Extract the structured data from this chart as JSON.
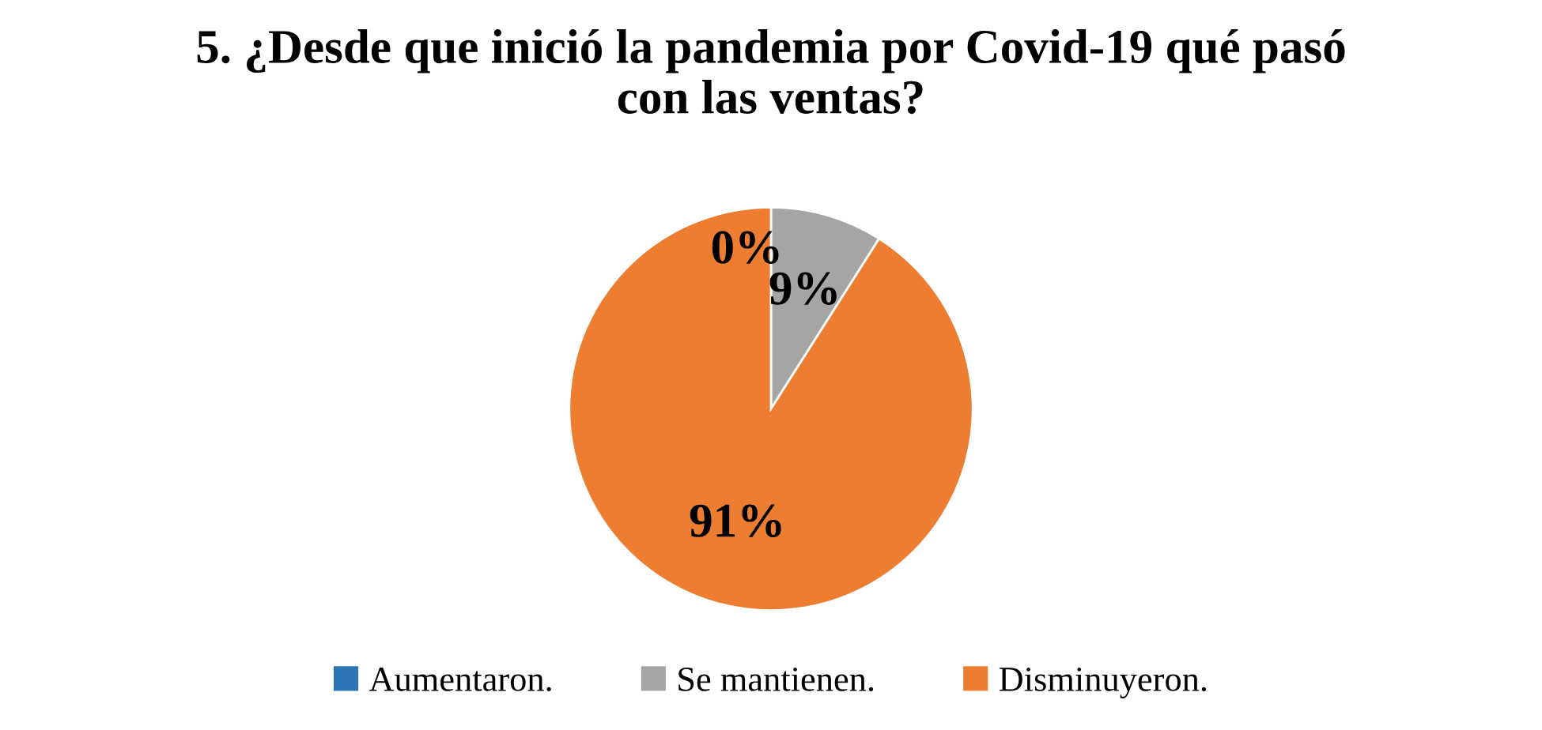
{
  "chart_data": {
    "type": "pie",
    "title": "5. ¿Desde que inició la pandemia por Covid-19 qué pasó\ncon las ventas?",
    "categories": [
      "Aumentaron.",
      "Se mantienen.",
      "Disminuyeron."
    ],
    "values": [
      0,
      9,
      91
    ],
    "colors": [
      "#2e75b6",
      "#a5a5a5",
      "#ed7d31"
    ],
    "value_labels": [
      "0%",
      "9%",
      "91%"
    ],
    "legend": "bottom"
  }
}
